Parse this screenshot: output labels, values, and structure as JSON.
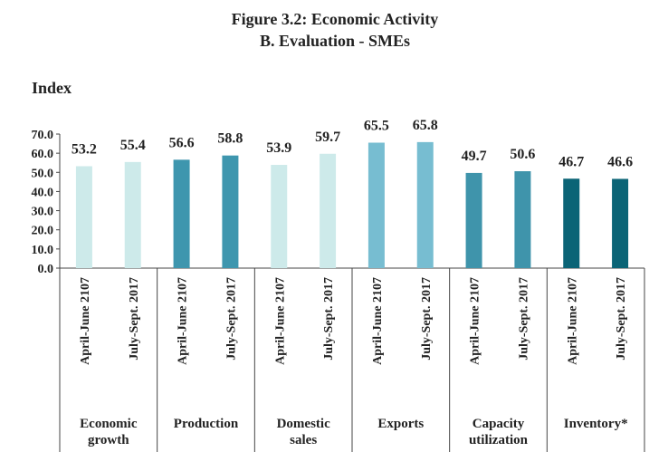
{
  "chart_data": {
    "type": "bar",
    "title": "Figure 3.2: Economic Activity",
    "subtitle": "B. Evaluation - SMEs",
    "y_label": "Index",
    "ylim": [
      0,
      70
    ],
    "yticks": [
      {
        "value": 0,
        "label": "0.0"
      },
      {
        "value": 10,
        "label": "10.0"
      },
      {
        "value": 20,
        "label": "20.0"
      },
      {
        "value": 30,
        "label": "30.0"
      },
      {
        "value": 40,
        "label": "40.0"
      },
      {
        "value": 50,
        "label": "50.0"
      },
      {
        "value": 60,
        "label": "60.0"
      },
      {
        "value": 70,
        "label": "70.0"
      }
    ],
    "groups": [
      {
        "label": "Economic growth",
        "color": "#cdeaea",
        "categories": [
          "April-June 2107",
          "July-Sept. 2017"
        ],
        "values": [
          53.2,
          55.4
        ]
      },
      {
        "label": "Production",
        "color": "#3e96ae",
        "categories": [
          "April-June 2107",
          "July-Sept. 2017"
        ],
        "values": [
          56.6,
          58.8
        ]
      },
      {
        "label": "Domestic sales",
        "color": "#cdeaea",
        "categories": [
          "April-June 2107",
          "July-Sept. 2017"
        ],
        "values": [
          53.9,
          59.7
        ]
      },
      {
        "label": "Exports",
        "color": "#77bdd1",
        "categories": [
          "April-June 2107",
          "July-Sept. 2017"
        ],
        "values": [
          65.5,
          65.8
        ]
      },
      {
        "label": "Capacity utilization",
        "color": "#3f94ab",
        "categories": [
          "April-June 2107",
          "July-Sept. 2017"
        ],
        "values": [
          49.7,
          50.6
        ]
      },
      {
        "label": "Inventory*",
        "color": "#0b6476",
        "categories": [
          "April-June 2107",
          "July-Sept. 2017"
        ],
        "values": [
          46.7,
          46.6
        ]
      }
    ]
  }
}
